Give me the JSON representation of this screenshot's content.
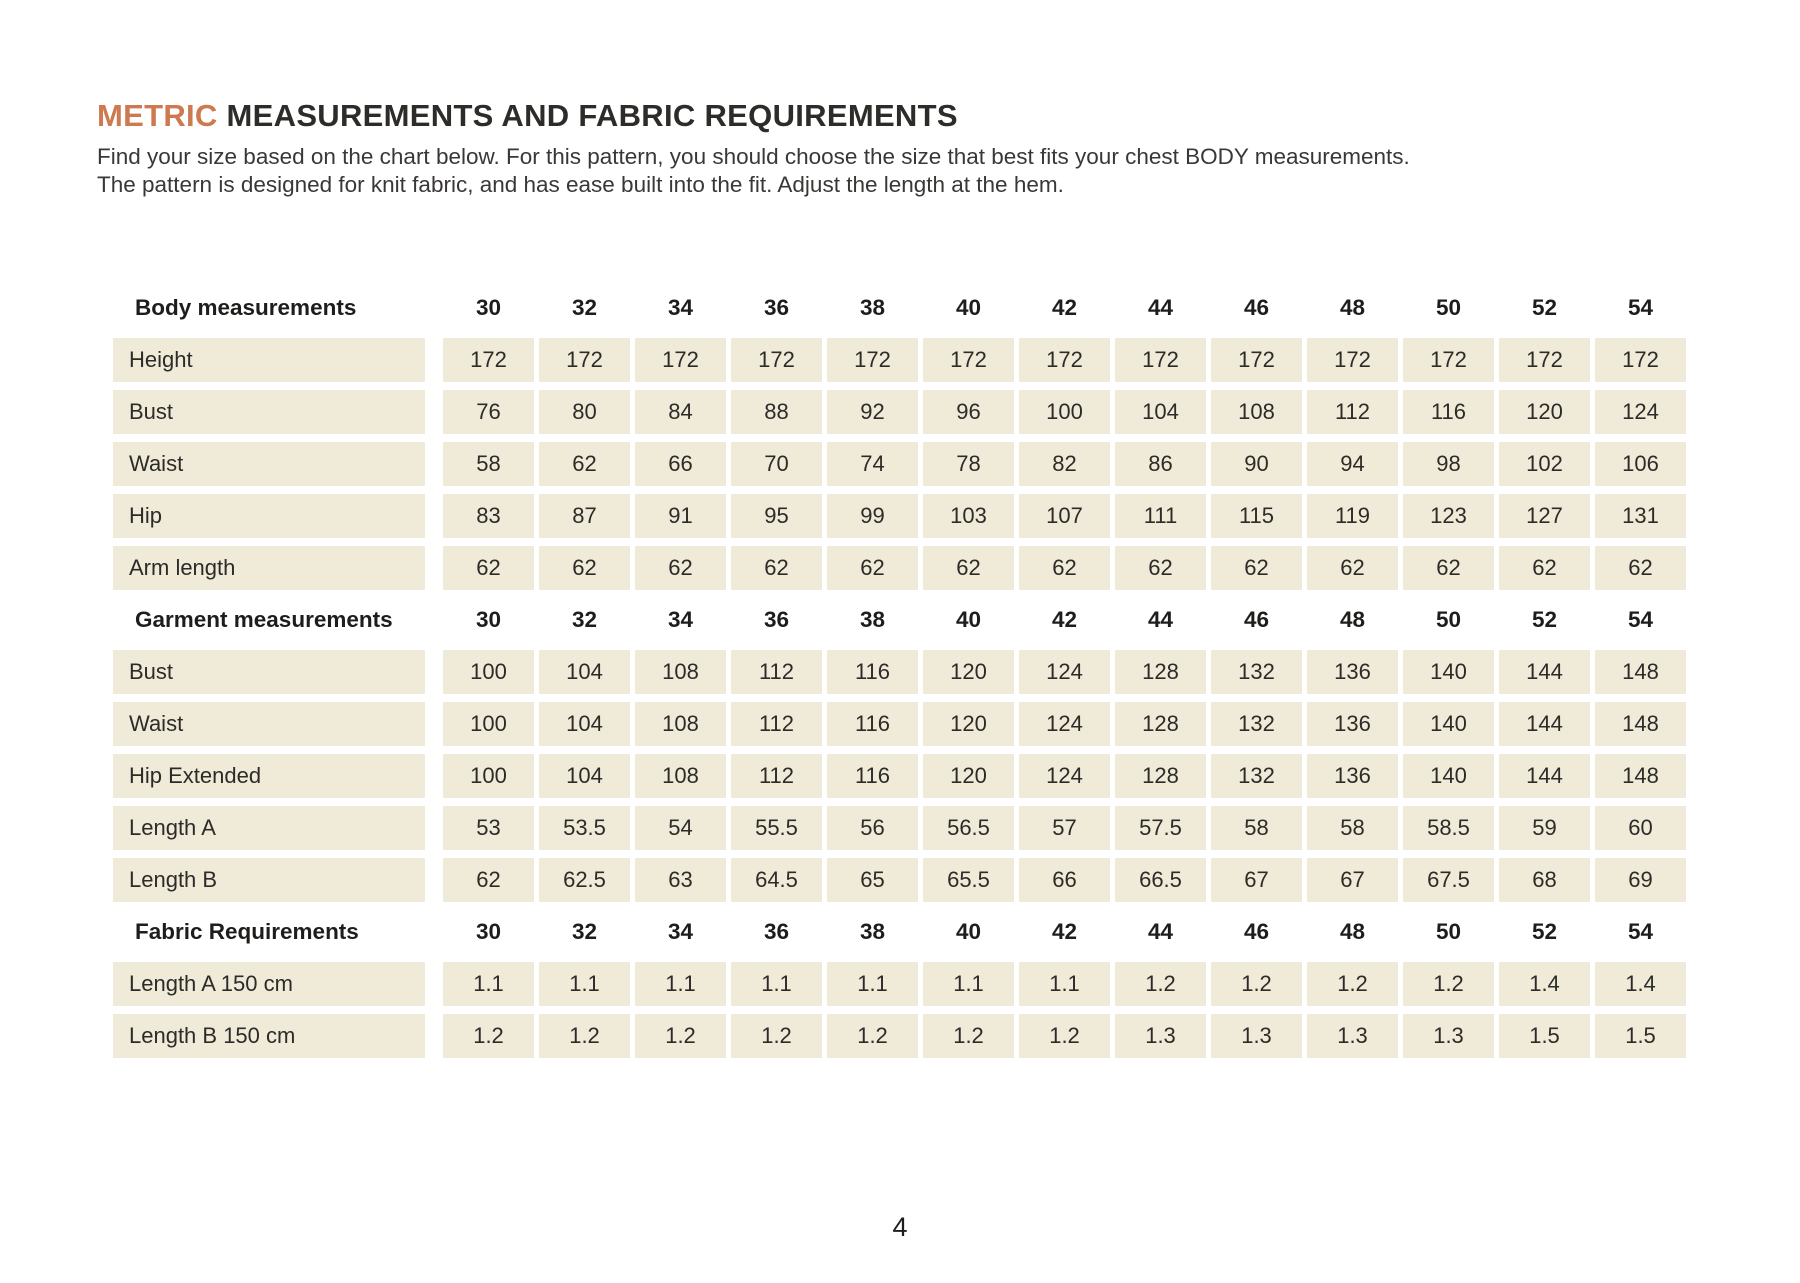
{
  "colors": {
    "accent": "#CE7950",
    "cell_bg": "#F0EBD9",
    "heading_text": "#2E2C29",
    "body_text": "#3A3836"
  },
  "header": {
    "title_accent": "METRIC",
    "title_rest": " MEASUREMENTS AND FABRIC REQUIREMENTS",
    "intro_line1": "Find your size based on the chart below. For this pattern, you should choose the size that best fits your chest BODY measurements.",
    "intro_line2": "The pattern is designed for knit fabric, and has ease built into the fit.  Adjust the length at the hem."
  },
  "table": {
    "sizes": [
      "30",
      "32",
      "34",
      "36",
      "38",
      "40",
      "42",
      "44",
      "46",
      "48",
      "50",
      "52",
      "54"
    ],
    "sections": [
      {
        "header": "Body measurements",
        "rows": [
          {
            "label": "Height",
            "values": [
              "172",
              "172",
              "172",
              "172",
              "172",
              "172",
              "172",
              "172",
              "172",
              "172",
              "172",
              "172",
              "172"
            ]
          },
          {
            "label": "Bust",
            "values": [
              "76",
              "80",
              "84",
              "88",
              "92",
              "96",
              "100",
              "104",
              "108",
              "112",
              "116",
              "120",
              "124"
            ]
          },
          {
            "label": "Waist",
            "values": [
              "58",
              "62",
              "66",
              "70",
              "74",
              "78",
              "82",
              "86",
              "90",
              "94",
              "98",
              "102",
              "106"
            ]
          },
          {
            "label": "Hip",
            "values": [
              "83",
              "87",
              "91",
              "95",
              "99",
              "103",
              "107",
              "111",
              "115",
              "119",
              "123",
              "127",
              "131"
            ]
          },
          {
            "label": "Arm length",
            "values": [
              "62",
              "62",
              "62",
              "62",
              "62",
              "62",
              "62",
              "62",
              "62",
              "62",
              "62",
              "62",
              "62"
            ]
          }
        ]
      },
      {
        "header": "Garment measurements",
        "rows": [
          {
            "label": "Bust",
            "values": [
              "100",
              "104",
              "108",
              "112",
              "116",
              "120",
              "124",
              "128",
              "132",
              "136",
              "140",
              "144",
              "148"
            ]
          },
          {
            "label": "Waist",
            "values": [
              "100",
              "104",
              "108",
              "112",
              "116",
              "120",
              "124",
              "128",
              "132",
              "136",
              "140",
              "144",
              "148"
            ]
          },
          {
            "label": "Hip Extended",
            "values": [
              "100",
              "104",
              "108",
              "112",
              "116",
              "120",
              "124",
              "128",
              "132",
              "136",
              "140",
              "144",
              "148"
            ]
          },
          {
            "label": "Length A",
            "values": [
              "53",
              "53.5",
              "54",
              "55.5",
              "56",
              "56.5",
              "57",
              "57.5",
              "58",
              "58",
              "58.5",
              "59",
              "60"
            ]
          },
          {
            "label": "Length B",
            "values": [
              "62",
              "62.5",
              "63",
              "64.5",
              "65",
              "65.5",
              "66",
              "66.5",
              "67",
              "67",
              "67.5",
              "68",
              "69"
            ]
          }
        ]
      },
      {
        "header": "Fabric Requirements",
        "rows": [
          {
            "label": "Length A 150 cm",
            "values": [
              "1.1",
              "1.1",
              "1.1",
              "1.1",
              "1.1",
              "1.1",
              "1.1",
              "1.2",
              "1.2",
              "1.2",
              "1.2",
              "1.4",
              "1.4"
            ]
          },
          {
            "label": "Length B 150 cm",
            "values": [
              "1.2",
              "1.2",
              "1.2",
              "1.2",
              "1.2",
              "1.2",
              "1.2",
              "1.3",
              "1.3",
              "1.3",
              "1.3",
              "1.5",
              "1.5"
            ]
          }
        ]
      }
    ]
  },
  "footer": {
    "page_number": "4"
  }
}
